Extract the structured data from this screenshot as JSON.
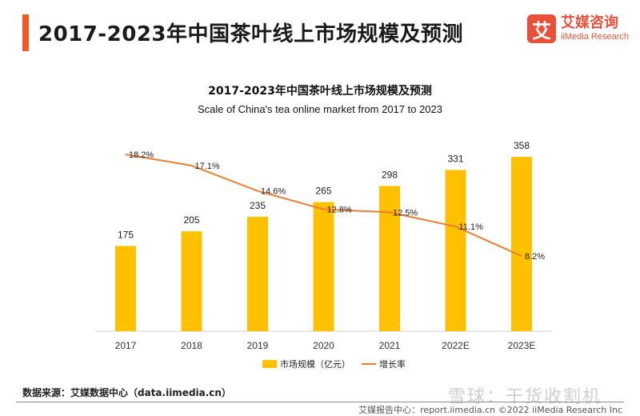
{
  "header": {
    "title": "2017-2023年中国茶叶线上市场规模及预测"
  },
  "logo": {
    "mark": "艾",
    "name_cn": "艾媒咨询",
    "name_en": "iiMedia Research"
  },
  "chart_data": {
    "type": "bar",
    "title": "2017-2023年中国茶叶线上市场规模及预测",
    "subtitle": "Scale of China's tea online market from 2017 to 2023",
    "categories": [
      "2017",
      "2018",
      "2019",
      "2020",
      "2021",
      "2022E",
      "2023E"
    ],
    "series": [
      {
        "name": "市场规模（亿元）",
        "type": "bar",
        "color": "#ffc000",
        "values": [
          175,
          205,
          235,
          265,
          298,
          331,
          358
        ],
        "labels": [
          "175",
          "205",
          "235",
          "265",
          "298",
          "331",
          "358"
        ]
      },
      {
        "name": "增长率",
        "type": "line",
        "color": "#ed7d31",
        "values": [
          18.2,
          17.1,
          14.6,
          12.8,
          12.5,
          11.1,
          8.2
        ],
        "labels": [
          "18.2%",
          "17.1%",
          "14.6%",
          "12.8%",
          "12.5%",
          "11.1%",
          "8.2%"
        ]
      }
    ],
    "legend": "bottom",
    "grid": false
  },
  "footer": {
    "source": "数据来源：艾媒数据中心（data.iimedia.cn）",
    "watermark": "雪球：干货收割机",
    "right": "艾媒报告中心：report.iimedia.cn  ©2022  iiMedia Research Inc"
  }
}
